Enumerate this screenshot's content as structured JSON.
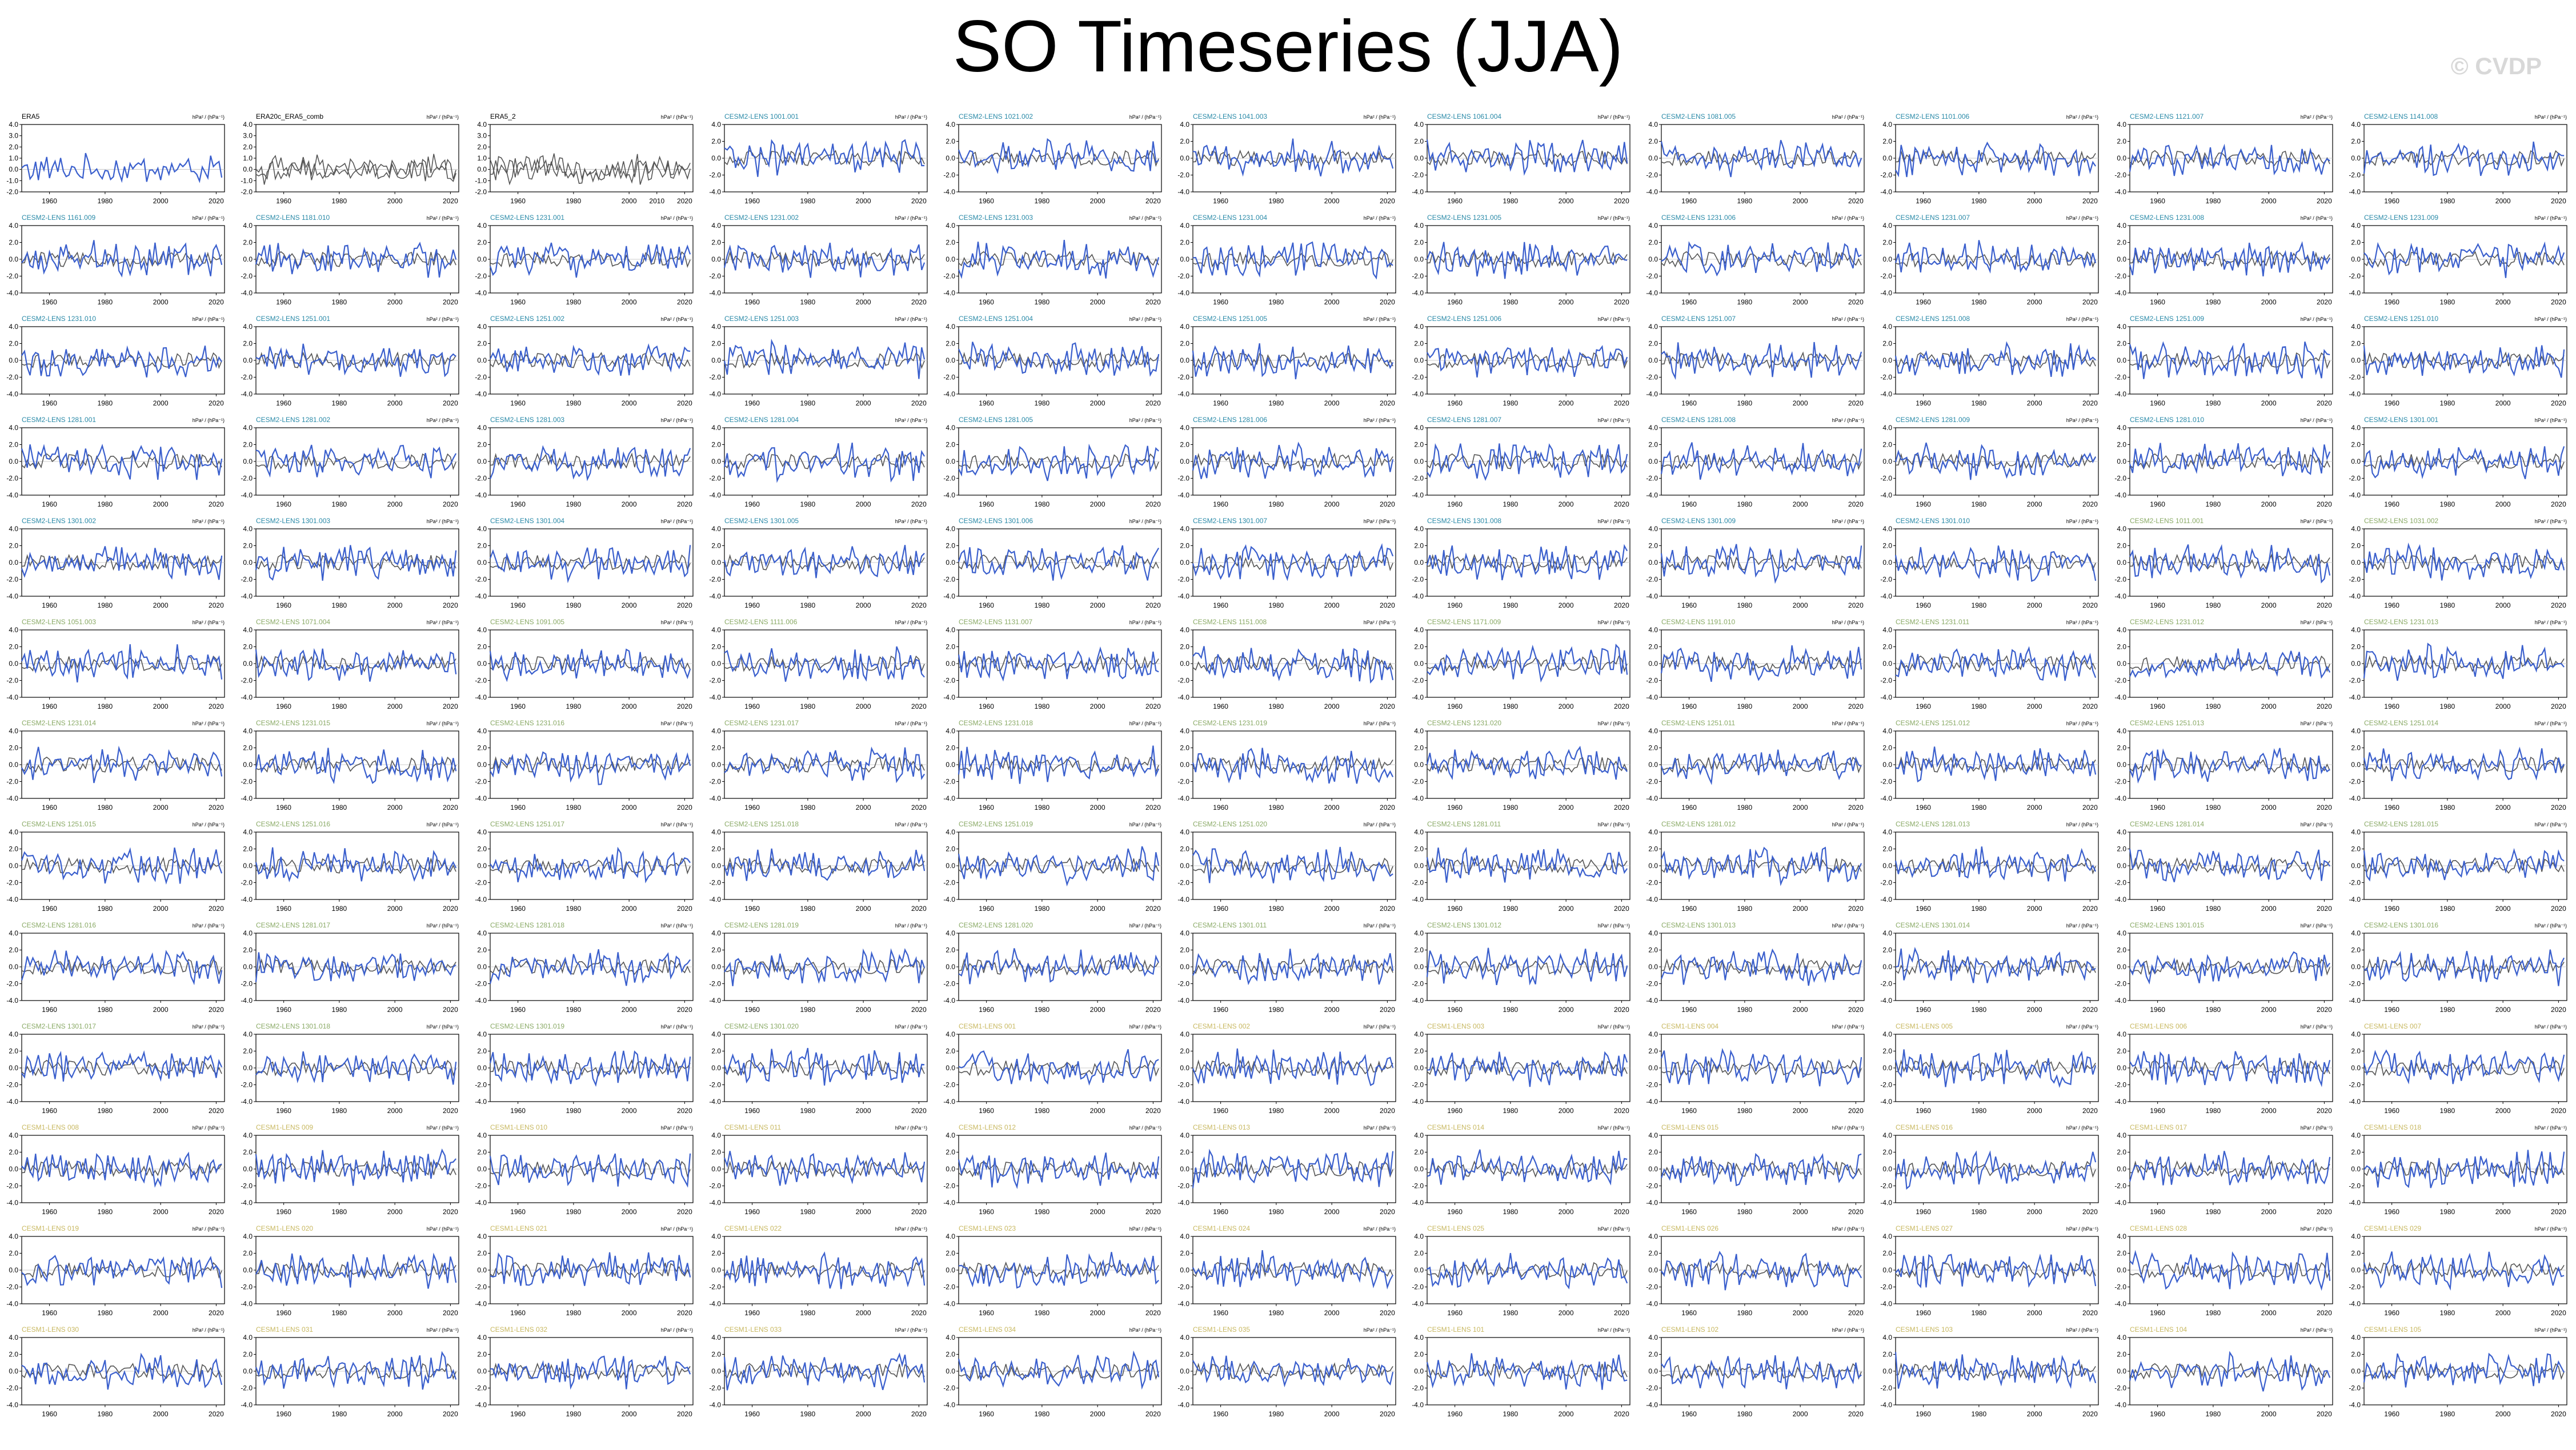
{
  "page": {
    "title": "SO Timeseries (JJA)",
    "watermark": "© CVDP"
  },
  "chart_data": {
    "type": "line",
    "panel_count": 143,
    "columns": 11,
    "units": "hPa² / (hPa⁻¹)",
    "x_ticks": [
      1960,
      1980,
      2000,
      2020
    ],
    "x_ticks_era5_2": [
      1960,
      1980,
      2000,
      2010,
      2020
    ],
    "y_ticks_default": [
      -4.0,
      -2.0,
      0.0,
      2.0,
      4.0
    ],
    "y_ticks_row1": [
      -2.0,
      -1.0,
      0.0,
      1.0,
      2.0,
      3.0,
      4.0
    ],
    "colors": {
      "observed": "#3a5fcd",
      "ensemble_mean": "#555555",
      "title_obs": "#000000",
      "title_cesm2": "#2a8aa8",
      "title_cesm1": "#8aaa66",
      "title_cesm1_alt": "#c8b860"
    },
    "panels": [
      {
        "title": "ERA5",
        "group": "obs"
      },
      {
        "title": "ERA20c_ERA5_comb",
        "group": "obs"
      },
      {
        "title": "ERA5_2",
        "group": "obs"
      },
      {
        "title": "CESM2-LENS 1001.001",
        "group": "cesm2"
      },
      {
        "title": "CESM2-LENS 1021.002",
        "group": "cesm2"
      },
      {
        "title": "CESM2-LENS 1041.003",
        "group": "cesm2"
      },
      {
        "title": "CESM2-LENS 1061.004",
        "group": "cesm2"
      },
      {
        "title": "CESM2-LENS 1081.005",
        "group": "cesm2"
      },
      {
        "title": "CESM2-LENS 1101.006",
        "group": "cesm2"
      },
      {
        "title": "CESM2-LENS 1121.007",
        "group": "cesm2"
      },
      {
        "title": "CESM2-LENS 1141.008",
        "group": "cesm2"
      },
      {
        "title": "CESM2-LENS 1161.009",
        "group": "cesm2"
      },
      {
        "title": "CESM2-LENS 1181.010",
        "group": "cesm2"
      },
      {
        "title": "CESM2-LENS 1231.001",
        "group": "cesm2"
      },
      {
        "title": "CESM2-LENS 1231.002",
        "group": "cesm2"
      },
      {
        "title": "CESM2-LENS 1231.003",
        "group": "cesm2"
      },
      {
        "title": "CESM2-LENS 1231.004",
        "group": "cesm2"
      },
      {
        "title": "CESM2-LENS 1231.005",
        "group": "cesm2"
      },
      {
        "title": "CESM2-LENS 1231.006",
        "group": "cesm2"
      },
      {
        "title": "CESM2-LENS 1231.007",
        "group": "cesm2"
      },
      {
        "title": "CESM2-LENS 1231.008",
        "group": "cesm2"
      },
      {
        "title": "CESM2-LENS 1231.009",
        "group": "cesm2"
      },
      {
        "title": "CESM2-LENS 1231.010",
        "group": "cesm2"
      },
      {
        "title": "CESM2-LENS 1251.001",
        "group": "cesm2"
      },
      {
        "title": "CESM2-LENS 1251.002",
        "group": "cesm2"
      },
      {
        "title": "CESM2-LENS 1251.003",
        "group": "cesm2"
      },
      {
        "title": "CESM2-LENS 1251.004",
        "group": "cesm2"
      },
      {
        "title": "CESM2-LENS 1251.005",
        "group": "cesm2"
      },
      {
        "title": "CESM2-LENS 1251.006",
        "group": "cesm2"
      },
      {
        "title": "CESM2-LENS 1251.007",
        "group": "cesm2"
      },
      {
        "title": "CESM2-LENS 1251.008",
        "group": "cesm2"
      },
      {
        "title": "CESM2-LENS 1251.009",
        "group": "cesm2"
      },
      {
        "title": "CESM2-LENS 1251.010",
        "group": "cesm2"
      },
      {
        "title": "CESM2-LENS 1281.001",
        "group": "cesm2"
      },
      {
        "title": "CESM2-LENS 1281.002",
        "group": "cesm2"
      },
      {
        "title": "CESM2-LENS 1281.003",
        "group": "cesm2"
      },
      {
        "title": "CESM2-LENS 1281.004",
        "group": "cesm2"
      },
      {
        "title": "CESM2-LENS 1281.005",
        "group": "cesm2"
      },
      {
        "title": "CESM2-LENS 1281.006",
        "group": "cesm2"
      },
      {
        "title": "CESM2-LENS 1281.007",
        "group": "cesm2"
      },
      {
        "title": "CESM2-LENS 1281.008",
        "group": "cesm2"
      },
      {
        "title": "CESM2-LENS 1281.009",
        "group": "cesm2"
      },
      {
        "title": "CESM2-LENS 1281.010",
        "group": "cesm2"
      },
      {
        "title": "CESM2-LENS 1301.001",
        "group": "cesm2"
      },
      {
        "title": "CESM2-LENS 1301.002",
        "group": "cesm2"
      },
      {
        "title": "CESM2-LENS 1301.003",
        "group": "cesm2"
      },
      {
        "title": "CESM2-LENS 1301.004",
        "group": "cesm2"
      },
      {
        "title": "CESM2-LENS 1301.005",
        "group": "cesm2"
      },
      {
        "title": "CESM2-LENS 1301.006",
        "group": "cesm2"
      },
      {
        "title": "CESM2-LENS 1301.007",
        "group": "cesm2"
      },
      {
        "title": "CESM2-LENS 1301.008",
        "group": "cesm2"
      },
      {
        "title": "CESM2-LENS 1301.009",
        "group": "cesm2"
      },
      {
        "title": "CESM2-LENS 1301.010",
        "group": "cesm2"
      },
      {
        "title": "CESM2-LENS 1011.001",
        "group": "cesm2b"
      },
      {
        "title": "CESM2-LENS 1031.002",
        "group": "cesm2b"
      },
      {
        "title": "CESM2-LENS 1051.003",
        "group": "cesm2b"
      },
      {
        "title": "CESM2-LENS 1071.004",
        "group": "cesm2b"
      },
      {
        "title": "CESM2-LENS 1091.005",
        "group": "cesm2b"
      },
      {
        "title": "CESM2-LENS 1111.006",
        "group": "cesm2b"
      },
      {
        "title": "CESM2-LENS 1131.007",
        "group": "cesm2b"
      },
      {
        "title": "CESM2-LENS 1151.008",
        "group": "cesm2b"
      },
      {
        "title": "CESM2-LENS 1171.009",
        "group": "cesm2b"
      },
      {
        "title": "CESM2-LENS 1191.010",
        "group": "cesm2b"
      },
      {
        "title": "CESM2-LENS 1231.011",
        "group": "cesm2b"
      },
      {
        "title": "CESM2-LENS 1231.012",
        "group": "cesm2b"
      },
      {
        "title": "CESM2-LENS 1231.013",
        "group": "cesm2b"
      },
      {
        "title": "CESM2-LENS 1231.014",
        "group": "cesm2b"
      },
      {
        "title": "CESM2-LENS 1231.015",
        "group": "cesm2b"
      },
      {
        "title": "CESM2-LENS 1231.016",
        "group": "cesm2b"
      },
      {
        "title": "CESM2-LENS 1231.017",
        "group": "cesm2b"
      },
      {
        "title": "CESM2-LENS 1231.018",
        "group": "cesm2b"
      },
      {
        "title": "CESM2-LENS 1231.019",
        "group": "cesm2b"
      },
      {
        "title": "CESM2-LENS 1231.020",
        "group": "cesm2b"
      },
      {
        "title": "CESM2-LENS 1251.011",
        "group": "cesm2b"
      },
      {
        "title": "CESM2-LENS 1251.012",
        "group": "cesm2b"
      },
      {
        "title": "CESM2-LENS 1251.013",
        "group": "cesm2b"
      },
      {
        "title": "CESM2-LENS 1251.014",
        "group": "cesm2b"
      },
      {
        "title": "CESM2-LENS 1251.015",
        "group": "cesm2b"
      },
      {
        "title": "CESM2-LENS 1251.016",
        "group": "cesm2b"
      },
      {
        "title": "CESM2-LENS 1251.017",
        "group": "cesm2b"
      },
      {
        "title": "CESM2-LENS 1251.018",
        "group": "cesm2b"
      },
      {
        "title": "CESM2-LENS 1251.019",
        "group": "cesm2b"
      },
      {
        "title": "CESM2-LENS 1251.020",
        "group": "cesm2b"
      },
      {
        "title": "CESM2-LENS 1281.011",
        "group": "cesm2b"
      },
      {
        "title": "CESM2-LENS 1281.012",
        "group": "cesm2b"
      },
      {
        "title": "CESM2-LENS 1281.013",
        "group": "cesm2b"
      },
      {
        "title": "CESM2-LENS 1281.014",
        "group": "cesm2b"
      },
      {
        "title": "CESM2-LENS 1281.015",
        "group": "cesm2b"
      },
      {
        "title": "CESM2-LENS 1281.016",
        "group": "cesm2b"
      },
      {
        "title": "CESM2-LENS 1281.017",
        "group": "cesm2b"
      },
      {
        "title": "CESM2-LENS 1281.018",
        "group": "cesm2b"
      },
      {
        "title": "CESM2-LENS 1281.019",
        "group": "cesm2b"
      },
      {
        "title": "CESM2-LENS 1281.020",
        "group": "cesm2b"
      },
      {
        "title": "CESM2-LENS 1301.011",
        "group": "cesm2b"
      },
      {
        "title": "CESM2-LENS 1301.012",
        "group": "cesm2b"
      },
      {
        "title": "CESM2-LENS 1301.013",
        "group": "cesm2b"
      },
      {
        "title": "CESM2-LENS 1301.014",
        "group": "cesm2b"
      },
      {
        "title": "CESM2-LENS 1301.015",
        "group": "cesm2b"
      },
      {
        "title": "CESM2-LENS 1301.016",
        "group": "cesm2b"
      },
      {
        "title": "CESM2-LENS 1301.017",
        "group": "cesm2b"
      },
      {
        "title": "CESM2-LENS 1301.018",
        "group": "cesm2b"
      },
      {
        "title": "CESM2-LENS 1301.019",
        "group": "cesm2b"
      },
      {
        "title": "CESM2-LENS 1301.020",
        "group": "cesm2b"
      },
      {
        "title": "CESM1-LENS 001",
        "group": "cesm1"
      },
      {
        "title": "CESM1-LENS 002",
        "group": "cesm1"
      },
      {
        "title": "CESM1-LENS 003",
        "group": "cesm1"
      },
      {
        "title": "CESM1-LENS 004",
        "group": "cesm1"
      },
      {
        "title": "CESM1-LENS 005",
        "group": "cesm1"
      },
      {
        "title": "CESM1-LENS 006",
        "group": "cesm1"
      },
      {
        "title": "CESM1-LENS 007",
        "group": "cesm1"
      },
      {
        "title": "CESM1-LENS 008",
        "group": "cesm1"
      },
      {
        "title": "CESM1-LENS 009",
        "group": "cesm1"
      },
      {
        "title": "CESM1-LENS 010",
        "group": "cesm1"
      },
      {
        "title": "CESM1-LENS 011",
        "group": "cesm1"
      },
      {
        "title": "CESM1-LENS 012",
        "group": "cesm1"
      },
      {
        "title": "CESM1-LENS 013",
        "group": "cesm1"
      },
      {
        "title": "CESM1-LENS 014",
        "group": "cesm1"
      },
      {
        "title": "CESM1-LENS 015",
        "group": "cesm1"
      },
      {
        "title": "CESM1-LENS 016",
        "group": "cesm1"
      },
      {
        "title": "CESM1-LENS 017",
        "group": "cesm1"
      },
      {
        "title": "CESM1-LENS 018",
        "group": "cesm1"
      },
      {
        "title": "CESM1-LENS 019",
        "group": "cesm1"
      },
      {
        "title": "CESM1-LENS 020",
        "group": "cesm1"
      },
      {
        "title": "CESM1-LENS 021",
        "group": "cesm1"
      },
      {
        "title": "CESM1-LENS 022",
        "group": "cesm1"
      },
      {
        "title": "CESM1-LENS 023",
        "group": "cesm1"
      },
      {
        "title": "CESM1-LENS 024",
        "group": "cesm1"
      },
      {
        "title": "CESM1-LENS 025",
        "group": "cesm1"
      },
      {
        "title": "CESM1-LENS 026",
        "group": "cesm1"
      },
      {
        "title": "CESM1-LENS 027",
        "group": "cesm1"
      },
      {
        "title": "CESM1-LENS 028",
        "group": "cesm1"
      },
      {
        "title": "CESM1-LENS 029",
        "group": "cesm1"
      },
      {
        "title": "CESM1-LENS 030",
        "group": "cesm1"
      },
      {
        "title": "CESM1-LENS 031",
        "group": "cesm1"
      },
      {
        "title": "CESM1-LENS 032",
        "group": "cesm1"
      },
      {
        "title": "CESM1-LENS 033",
        "group": "cesm1"
      },
      {
        "title": "CESM1-LENS 034",
        "group": "cesm1"
      },
      {
        "title": "CESM1-LENS 035",
        "group": "cesm1"
      },
      {
        "title": "CESM1-LENS 101",
        "group": "cesm1"
      },
      {
        "title": "CESM1-LENS 102",
        "group": "cesm1"
      },
      {
        "title": "CESM1-LENS 103",
        "group": "cesm1"
      },
      {
        "title": "CESM1-LENS 104",
        "group": "cesm1"
      },
      {
        "title": "CESM1-LENS 105",
        "group": "cesm1"
      }
    ]
  }
}
